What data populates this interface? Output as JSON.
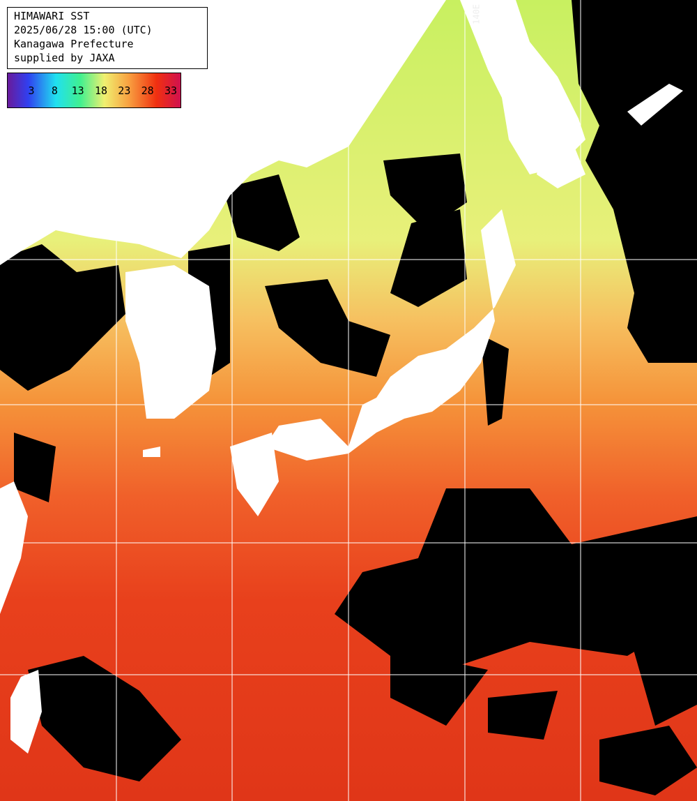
{
  "header": {
    "lines": [
      "HIMAWARI SST",
      "2025/06/28 15:00 (UTC)",
      "Kanagawa Prefecture",
      "supplied by JAXA"
    ]
  },
  "legend": {
    "labels": [
      "3",
      "8",
      "13",
      "18",
      "23",
      "28",
      "33"
    ]
  },
  "grid_labels": {
    "longitude": "140E"
  }
}
